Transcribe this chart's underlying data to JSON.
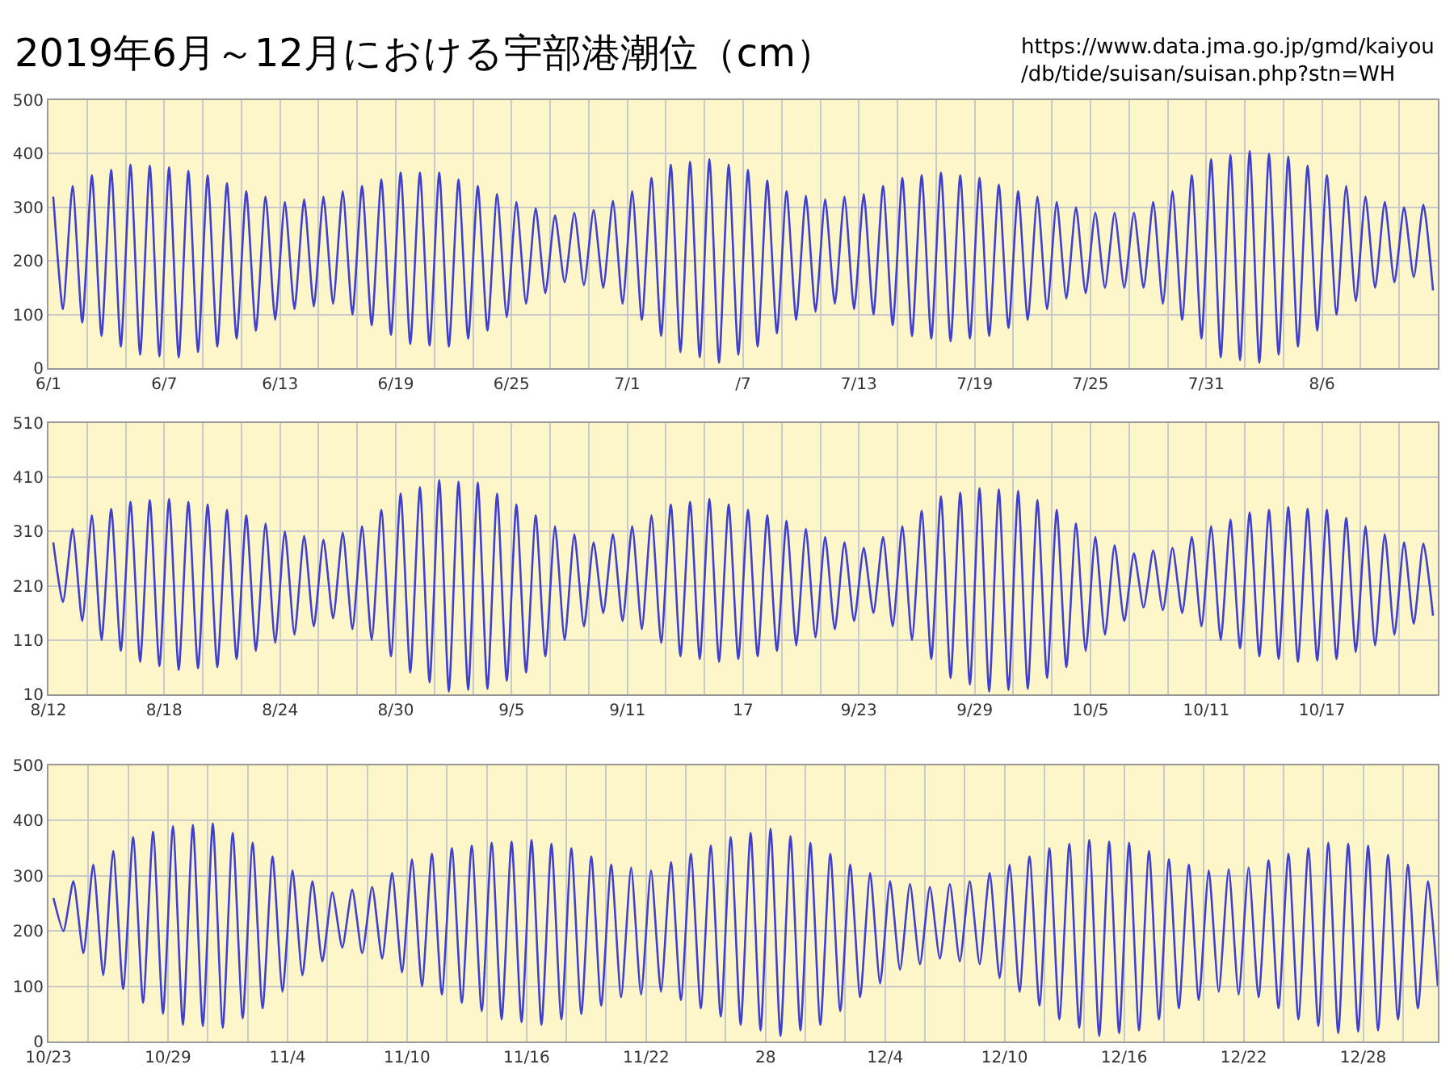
{
  "chart_data": [
    {
      "type": "line",
      "title": "2019年6月～12月における宇部港潮位（cm）",
      "annotations": [
        "https://www.data.jma.go.jp/gmd/kaiyou\n/db/tide/suisan/suisan.php?stn=WH"
      ],
      "grid": true,
      "xlim": [
        "2019-06-01",
        "2019-08-12"
      ],
      "ylim": [
        0,
        500
      ],
      "yticks": [
        0,
        100,
        200,
        300,
        400,
        500
      ],
      "xticks": [
        {
          "value": "2019-06-01",
          "label": "6/1"
        },
        {
          "value": "2019-06-03",
          "label": null
        },
        {
          "value": "2019-06-05",
          "label": null
        },
        {
          "value": "2019-06-07",
          "label": "6/7"
        },
        {
          "value": "2019-06-09",
          "label": null
        },
        {
          "value": "2019-06-11",
          "label": null
        },
        {
          "value": "2019-06-13",
          "label": "6/13"
        },
        {
          "value": "2019-06-15",
          "label": null
        },
        {
          "value": "2019-06-17",
          "label": null
        },
        {
          "value": "2019-06-19",
          "label": "6/19"
        },
        {
          "value": "2019-06-21",
          "label": null
        },
        {
          "value": "2019-06-23",
          "label": null
        },
        {
          "value": "2019-06-25",
          "label": "6/25"
        },
        {
          "value": "2019-06-27",
          "label": null
        },
        {
          "value": "2019-06-29",
          "label": null
        },
        {
          "value": "2019-07-01",
          "label": "7/1"
        },
        {
          "value": "2019-07-03",
          "label": null
        },
        {
          "value": "2019-07-05",
          "label": null
        },
        {
          "value": "2019-07-07",
          "label": "/7"
        },
        {
          "value": "2019-07-09",
          "label": null
        },
        {
          "value": "2019-07-11",
          "label": null
        },
        {
          "value": "2019-07-13",
          "label": "7/13"
        },
        {
          "value": "2019-07-15",
          "label": null
        },
        {
          "value": "2019-07-17",
          "label": null
        },
        {
          "value": "2019-07-19",
          "label": "7/19"
        },
        {
          "value": "2019-07-21",
          "label": null
        },
        {
          "value": "2019-07-23",
          "label": null
        },
        {
          "value": "2019-07-25",
          "label": "7/25"
        },
        {
          "value": "2019-07-27",
          "label": null
        },
        {
          "value": "2019-07-29",
          "label": null
        },
        {
          "value": "2019-07-31",
          "label": "7/31"
        },
        {
          "value": "2019-08-02",
          "label": null
        },
        {
          "value": "2019-08-04",
          "label": null
        },
        {
          "value": "2019-08-06",
          "label": "8/6"
        },
        {
          "value": "2019-08-08",
          "label": null
        },
        {
          "value": "2019-08-10",
          "label": null
        }
      ],
      "x": [
        "2019-06-01T06:00",
        "2019-06-01T18:00",
        "2019-06-02T06:00",
        "2019-06-02T18:00",
        "2019-06-03T06:00",
        "2019-06-03T18:00",
        "2019-06-04T06:00",
        "2019-06-04T18:00",
        "2019-06-05T06:00",
        "2019-06-05T18:00",
        "2019-06-06T06:00",
        "2019-06-06T18:00",
        "2019-06-07T06:00",
        "2019-06-07T18:00",
        "2019-06-08T06:00",
        "2019-06-08T18:00",
        "2019-06-09T06:00",
        "2019-06-09T18:00",
        "2019-06-10T06:00",
        "2019-06-10T18:00",
        "2019-06-11T06:00",
        "2019-06-11T18:00",
        "2019-06-12T06:00",
        "2019-06-12T18:00",
        "2019-06-13T06:00",
        "2019-06-13T18:00",
        "2019-06-14T06:00",
        "2019-06-14T18:00",
        "2019-06-15T06:00",
        "2019-06-15T18:00",
        "2019-06-16T06:00",
        "2019-06-16T18:00",
        "2019-06-17T06:00",
        "2019-06-17T18:00",
        "2019-06-18T06:00",
        "2019-06-18T18:00",
        "2019-06-19T06:00",
        "2019-06-19T18:00",
        "2019-06-20T06:00",
        "2019-06-20T18:00",
        "2019-06-21T06:00",
        "2019-06-21T18:00",
        "2019-06-22T06:00",
        "2019-06-22T18:00",
        "2019-06-23T06:00",
        "2019-06-23T18:00",
        "2019-06-24T06:00",
        "2019-06-24T18:00",
        "2019-06-25T06:00",
        "2019-06-25T18:00",
        "2019-06-26T06:00",
        "2019-06-26T18:00",
        "2019-06-27T06:00",
        "2019-06-27T18:00",
        "2019-06-28T06:00",
        "2019-06-28T18:00",
        "2019-06-29T06:00",
        "2019-06-29T18:00",
        "2019-06-30T06:00",
        "2019-06-30T18:00",
        "2019-07-01T06:00",
        "2019-07-01T18:00",
        "2019-07-02T06:00",
        "2019-07-02T18:00",
        "2019-07-03T06:00",
        "2019-07-03T18:00",
        "2019-07-04T06:00",
        "2019-07-04T18:00",
        "2019-07-05T06:00",
        "2019-07-05T18:00",
        "2019-07-06T06:00",
        "2019-07-06T18:00",
        "2019-07-07T06:00",
        "2019-07-07T18:00",
        "2019-07-08T06:00",
        "2019-07-08T18:00",
        "2019-07-09T06:00",
        "2019-07-09T18:00",
        "2019-07-10T06:00",
        "2019-07-10T18:00",
        "2019-07-11T06:00",
        "2019-07-11T18:00",
        "2019-07-12T06:00",
        "2019-07-12T18:00",
        "2019-07-13T06:00",
        "2019-07-13T18:00",
        "2019-07-14T06:00",
        "2019-07-14T18:00",
        "2019-07-15T06:00",
        "2019-07-15T18:00",
        "2019-07-16T06:00",
        "2019-07-16T18:00",
        "2019-07-17T06:00",
        "2019-07-17T18:00",
        "2019-07-18T06:00",
        "2019-07-18T18:00",
        "2019-07-19T06:00",
        "2019-07-19T18:00",
        "2019-07-20T06:00",
        "2019-07-20T18:00",
        "2019-07-21T06:00",
        "2019-07-21T18:00",
        "2019-07-22T06:00",
        "2019-07-22T18:00",
        "2019-07-23T06:00",
        "2019-07-23T18:00",
        "2019-07-24T06:00",
        "2019-07-24T18:00",
        "2019-07-25T06:00",
        "2019-07-25T18:00",
        "2019-07-26T06:00",
        "2019-07-26T18:00",
        "2019-07-27T06:00",
        "2019-07-27T18:00",
        "2019-07-28T06:00",
        "2019-07-28T18:00",
        "2019-07-29T06:00",
        "2019-07-29T18:00",
        "2019-07-30T06:00",
        "2019-07-30T18:00",
        "2019-07-31T06:00",
        "2019-07-31T18:00",
        "2019-08-01T06:00",
        "2019-08-01T18:00",
        "2019-08-02T06:00",
        "2019-08-02T18:00",
        "2019-08-03T06:00",
        "2019-08-03T18:00",
        "2019-08-04T06:00",
        "2019-08-04T18:00",
        "2019-08-05T06:00",
        "2019-08-05T18:00",
        "2019-08-06T06:00",
        "2019-08-06T18:00",
        "2019-08-07T06:00",
        "2019-08-07T18:00",
        "2019-08-08T06:00",
        "2019-08-08T18:00",
        "2019-08-09T06:00",
        "2019-08-09T18:00",
        "2019-08-10T06:00",
        "2019-08-10T18:00",
        "2019-08-11T06:00",
        "2019-08-11T18:00"
      ],
      "series": [
        {
          "color": "#4040d0",
          "values": [
            320,
            110,
            340,
            85,
            360,
            60,
            370,
            40,
            380,
            25,
            378,
            22,
            375,
            20,
            368,
            30,
            360,
            40,
            345,
            55,
            330,
            70,
            320,
            90,
            310,
            110,
            315,
            115,
            320,
            120,
            330,
            100,
            340,
            80,
            352,
            62,
            365,
            45,
            365,
            42,
            365,
            40,
            352,
            55,
            340,
            70,
            325,
            95,
            310,
            120,
            298,
            140,
            285,
            160,
            290,
            155,
            295,
            150,
            312,
            120,
            330,
            90,
            355,
            60,
            380,
            30,
            385,
            20,
            390,
            10,
            380,
            25,
            370,
            40,
            350,
            65,
            330,
            90,
            322,
            105,
            315,
            120,
            320,
            110,
            325,
            100,
            340,
            80,
            355,
            60,
            360,
            55,
            365,
            50,
            360,
            55,
            355,
            60,
            342,
            75,
            330,
            90,
            320,
            110,
            310,
            130,
            300,
            140,
            290,
            150,
            290,
            150,
            290,
            150,
            310,
            120,
            330,
            90,
            360,
            55,
            390,
            20,
            398,
            15,
            405,
            10,
            400,
            25,
            395,
            40,
            378,
            70,
            360,
            100,
            340,
            125,
            320,
            150,
            310,
            160,
            300,
            170,
            305,
            145
          ]
        }
      ]
    },
    {
      "type": "line",
      "grid": true,
      "xlim": [
        "2019-08-12",
        "2019-10-23"
      ],
      "ylim": [
        10,
        510
      ],
      "yticks": [
        10,
        110,
        210,
        310,
        410,
        510
      ],
      "xticks": [
        {
          "value": "2019-08-12",
          "label": "8/12"
        },
        {
          "value": "2019-08-14",
          "label": null
        },
        {
          "value": "2019-08-16",
          "label": null
        },
        {
          "value": "2019-08-18",
          "label": "8/18"
        },
        {
          "value": "2019-08-20",
          "label": null
        },
        {
          "value": "2019-08-22",
          "label": null
        },
        {
          "value": "2019-08-24",
          "label": "8/24"
        },
        {
          "value": "2019-08-26",
          "label": null
        },
        {
          "value": "2019-08-28",
          "label": null
        },
        {
          "value": "2019-08-30",
          "label": "8/30"
        },
        {
          "value": "2019-09-01",
          "label": null
        },
        {
          "value": "2019-09-03",
          "label": null
        },
        {
          "value": "2019-09-05",
          "label": "9/5"
        },
        {
          "value": "2019-09-07",
          "label": null
        },
        {
          "value": "2019-09-09",
          "label": null
        },
        {
          "value": "2019-09-11",
          "label": "9/11"
        },
        {
          "value": "2019-09-13",
          "label": null
        },
        {
          "value": "2019-09-15",
          "label": null
        },
        {
          "value": "2019-09-17",
          "label": "17"
        },
        {
          "value": "2019-09-19",
          "label": null
        },
        {
          "value": "2019-09-21",
          "label": null
        },
        {
          "value": "2019-09-23",
          "label": "9/23"
        },
        {
          "value": "2019-09-25",
          "label": null
        },
        {
          "value": "2019-09-27",
          "label": null
        },
        {
          "value": "2019-09-29",
          "label": "9/29"
        },
        {
          "value": "2019-10-01",
          "label": null
        },
        {
          "value": "2019-10-03",
          "label": null
        },
        {
          "value": "2019-10-05",
          "label": "10/5"
        },
        {
          "value": "2019-10-07",
          "label": null
        },
        {
          "value": "2019-10-09",
          "label": null
        },
        {
          "value": "2019-10-11",
          "label": "10/11"
        },
        {
          "value": "2019-10-13",
          "label": null
        },
        {
          "value": "2019-10-15",
          "label": null
        },
        {
          "value": "2019-10-17",
          "label": "10/17"
        },
        {
          "value": "2019-10-19",
          "label": null
        },
        {
          "value": "2019-10-21",
          "label": null
        }
      ],
      "x": [
        "2019-08-12T06:00",
        "2019-08-12T18:00",
        "2019-08-13T06:00",
        "2019-08-13T18:00",
        "2019-08-14T06:00",
        "2019-08-14T18:00",
        "2019-08-15T06:00",
        "2019-08-15T18:00",
        "2019-08-16T06:00",
        "2019-08-16T18:00",
        "2019-08-17T06:00",
        "2019-08-17T18:00",
        "2019-08-18T06:00",
        "2019-08-18T18:00",
        "2019-08-19T06:00",
        "2019-08-19T18:00",
        "2019-08-20T06:00",
        "2019-08-20T18:00",
        "2019-08-21T06:00",
        "2019-08-21T18:00",
        "2019-08-22T06:00",
        "2019-08-22T18:00",
        "2019-08-23T06:00",
        "2019-08-23T18:00",
        "2019-08-24T06:00",
        "2019-08-24T18:00",
        "2019-08-25T06:00",
        "2019-08-25T18:00",
        "2019-08-26T06:00",
        "2019-08-26T18:00",
        "2019-08-27T06:00",
        "2019-08-27T18:00",
        "2019-08-28T06:00",
        "2019-08-28T18:00",
        "2019-08-29T06:00",
        "2019-08-29T18:00",
        "2019-08-30T06:00",
        "2019-08-30T18:00",
        "2019-08-31T06:00",
        "2019-08-31T18:00",
        "2019-09-01T06:00",
        "2019-09-01T18:00",
        "2019-09-02T06:00",
        "2019-09-02T18:00",
        "2019-09-03T06:00",
        "2019-09-03T18:00",
        "2019-09-04T06:00",
        "2019-09-04T18:00",
        "2019-09-05T06:00",
        "2019-09-05T18:00",
        "2019-09-06T06:00",
        "2019-09-06T18:00",
        "2019-09-07T06:00",
        "2019-09-07T18:00",
        "2019-09-08T06:00",
        "2019-09-08T18:00",
        "2019-09-09T06:00",
        "2019-09-09T18:00",
        "2019-09-10T06:00",
        "2019-09-10T18:00",
        "2019-09-11T06:00",
        "2019-09-11T18:00",
        "2019-09-12T06:00",
        "2019-09-12T18:00",
        "2019-09-13T06:00",
        "2019-09-13T18:00",
        "2019-09-14T06:00",
        "2019-09-14T18:00",
        "2019-09-15T06:00",
        "2019-09-15T18:00",
        "2019-09-16T06:00",
        "2019-09-16T18:00",
        "2019-09-17T06:00",
        "2019-09-17T18:00",
        "2019-09-18T06:00",
        "2019-09-18T18:00",
        "2019-09-19T06:00",
        "2019-09-19T18:00",
        "2019-09-20T06:00",
        "2019-09-20T18:00",
        "2019-09-21T06:00",
        "2019-09-21T18:00",
        "2019-09-22T06:00",
        "2019-09-22T18:00",
        "2019-09-23T06:00",
        "2019-09-23T18:00",
        "2019-09-24T06:00",
        "2019-09-24T18:00",
        "2019-09-25T06:00",
        "2019-09-25T18:00",
        "2019-09-26T06:00",
        "2019-09-26T18:00",
        "2019-09-27T06:00",
        "2019-09-27T18:00",
        "2019-09-28T06:00",
        "2019-09-28T18:00",
        "2019-09-29T06:00",
        "2019-09-29T18:00",
        "2019-09-30T06:00",
        "2019-09-30T18:00",
        "2019-10-01T06:00",
        "2019-10-01T18:00",
        "2019-10-02T06:00",
        "2019-10-02T18:00",
        "2019-10-03T06:00",
        "2019-10-03T18:00",
        "2019-10-04T06:00",
        "2019-10-04T18:00",
        "2019-10-05T06:00",
        "2019-10-05T18:00",
        "2019-10-06T06:00",
        "2019-10-06T18:00",
        "2019-10-07T06:00",
        "2019-10-07T18:00",
        "2019-10-08T06:00",
        "2019-10-08T18:00",
        "2019-10-09T06:00",
        "2019-10-09T18:00",
        "2019-10-10T06:00",
        "2019-10-10T18:00",
        "2019-10-11T06:00",
        "2019-10-11T18:00",
        "2019-10-12T06:00",
        "2019-10-12T18:00",
        "2019-10-13T06:00",
        "2019-10-13T18:00",
        "2019-10-14T06:00",
        "2019-10-14T18:00",
        "2019-10-15T06:00",
        "2019-10-15T18:00",
        "2019-10-16T06:00",
        "2019-10-16T18:00",
        "2019-10-17T06:00",
        "2019-10-17T18:00",
        "2019-10-18T06:00",
        "2019-10-18T18:00",
        "2019-10-19T06:00",
        "2019-10-19T18:00",
        "2019-10-20T06:00",
        "2019-10-20T18:00",
        "2019-10-21T06:00",
        "2019-10-21T18:00",
        "2019-10-22T06:00",
        "2019-10-22T18:00"
      ],
      "series": [
        {
          "color": "#4040d0",
          "values": [
            290,
            180,
            315,
            145,
            340,
            110,
            352,
            90,
            365,
            70,
            368,
            62,
            370,
            55,
            365,
            58,
            360,
            60,
            350,
            75,
            340,
            90,
            325,
            105,
            310,
            120,
            302,
            135,
            295,
            150,
            308,
            130,
            320,
            110,
            350,
            80,
            380,
            50,
            392,
            32,
            405,
            15,
            402,
            18,
            400,
            20,
            380,
            35,
            360,
            50,
            340,
            80,
            320,
            110,
            305,
            135,
            290,
            160,
            305,
            145,
            320,
            130,
            340,
            105,
            360,
            80,
            365,
            75,
            370,
            70,
            360,
            75,
            350,
            80,
            340,
            90,
            330,
            100,
            315,
            115,
            300,
            130,
            290,
            145,
            280,
            160,
            300,
            135,
            320,
            110,
            348,
            75,
            375,
            40,
            382,
            28,
            390,
            15,
            388,
            18,
            385,
            20,
            368,
            40,
            350,
            60,
            325,
            90,
            300,
            120,
            285,
            145,
            270,
            170,
            275,
            165,
            280,
            160,
            300,
            135,
            320,
            110,
            332,
            95,
            345,
            80,
            350,
            75,
            355,
            70,
            352,
            72,
            350,
            75,
            335,
            88,
            320,
            100,
            305,
            120,
            290,
            140,
            288,
            155
          ]
        }
      ]
    },
    {
      "type": "line",
      "grid": true,
      "xlim": [
        "2019-10-23",
        "2019-12-31T18:00"
      ],
      "ylim": [
        0,
        500
      ],
      "yticks": [
        0,
        100,
        200,
        300,
        400,
        500
      ],
      "xticks": [
        {
          "value": "2019-10-23",
          "label": "10/23"
        },
        {
          "value": "2019-10-25",
          "label": null
        },
        {
          "value": "2019-10-27",
          "label": null
        },
        {
          "value": "2019-10-29",
          "label": "10/29"
        },
        {
          "value": "2019-10-31",
          "label": null
        },
        {
          "value": "2019-11-02",
          "label": null
        },
        {
          "value": "2019-11-04",
          "label": "11/4"
        },
        {
          "value": "2019-11-06",
          "label": null
        },
        {
          "value": "2019-11-08",
          "label": null
        },
        {
          "value": "2019-11-10",
          "label": "11/10"
        },
        {
          "value": "2019-11-12",
          "label": null
        },
        {
          "value": "2019-11-14",
          "label": null
        },
        {
          "value": "2019-11-16",
          "label": "11/16"
        },
        {
          "value": "2019-11-18",
          "label": null
        },
        {
          "value": "2019-11-20",
          "label": null
        },
        {
          "value": "2019-11-22",
          "label": "11/22"
        },
        {
          "value": "2019-11-24",
          "label": null
        },
        {
          "value": "2019-11-26",
          "label": null
        },
        {
          "value": "2019-11-28",
          "label": "28"
        },
        {
          "value": "2019-11-30",
          "label": null
        },
        {
          "value": "2019-12-02",
          "label": null
        },
        {
          "value": "2019-12-04",
          "label": "12/4"
        },
        {
          "value": "2019-12-06",
          "label": null
        },
        {
          "value": "2019-12-08",
          "label": null
        },
        {
          "value": "2019-12-10",
          "label": "12/10"
        },
        {
          "value": "2019-12-12",
          "label": null
        },
        {
          "value": "2019-12-14",
          "label": null
        },
        {
          "value": "2019-12-16",
          "label": "12/16"
        },
        {
          "value": "2019-12-18",
          "label": null
        },
        {
          "value": "2019-12-20",
          "label": null
        },
        {
          "value": "2019-12-22",
          "label": "12/22"
        },
        {
          "value": "2019-12-24",
          "label": null
        },
        {
          "value": "2019-12-26",
          "label": null
        },
        {
          "value": "2019-12-28",
          "label": "12/28"
        },
        {
          "value": "2019-12-30",
          "label": null
        }
      ],
      "x": [
        "2019-10-23T06:00",
        "2019-10-23T18:00",
        "2019-10-24T06:00",
        "2019-10-24T18:00",
        "2019-10-25T06:00",
        "2019-10-25T18:00",
        "2019-10-26T06:00",
        "2019-10-26T18:00",
        "2019-10-27T06:00",
        "2019-10-27T18:00",
        "2019-10-28T06:00",
        "2019-10-28T18:00",
        "2019-10-29T06:00",
        "2019-10-29T18:00",
        "2019-10-30T06:00",
        "2019-10-30T18:00",
        "2019-10-31T06:00",
        "2019-10-31T18:00",
        "2019-11-01T06:00",
        "2019-11-01T18:00",
        "2019-11-02T06:00",
        "2019-11-02T18:00",
        "2019-11-03T06:00",
        "2019-11-03T18:00",
        "2019-11-04T06:00",
        "2019-11-04T18:00",
        "2019-11-05T06:00",
        "2019-11-05T18:00",
        "2019-11-06T06:00",
        "2019-11-06T18:00",
        "2019-11-07T06:00",
        "2019-11-07T18:00",
        "2019-11-08T06:00",
        "2019-11-08T18:00",
        "2019-11-09T06:00",
        "2019-11-09T18:00",
        "2019-11-10T06:00",
        "2019-11-10T18:00",
        "2019-11-11T06:00",
        "2019-11-11T18:00",
        "2019-11-12T06:00",
        "2019-11-12T18:00",
        "2019-11-13T06:00",
        "2019-11-13T18:00",
        "2019-11-14T06:00",
        "2019-11-14T18:00",
        "2019-11-15T06:00",
        "2019-11-15T18:00",
        "2019-11-16T06:00",
        "2019-11-16T18:00",
        "2019-11-17T06:00",
        "2019-11-17T18:00",
        "2019-11-18T06:00",
        "2019-11-18T18:00",
        "2019-11-19T06:00",
        "2019-11-19T18:00",
        "2019-11-20T06:00",
        "2019-11-20T18:00",
        "2019-11-21T06:00",
        "2019-11-21T18:00",
        "2019-11-22T06:00",
        "2019-11-22T18:00",
        "2019-11-23T06:00",
        "2019-11-23T18:00",
        "2019-11-24T06:00",
        "2019-11-24T18:00",
        "2019-11-25T06:00",
        "2019-11-25T18:00",
        "2019-11-26T06:00",
        "2019-11-26T18:00",
        "2019-11-27T06:00",
        "2019-11-27T18:00",
        "2019-11-28T06:00",
        "2019-11-28T18:00",
        "2019-11-29T06:00",
        "2019-11-29T18:00",
        "2019-11-30T06:00",
        "2019-11-30T18:00",
        "2019-12-01T06:00",
        "2019-12-01T18:00",
        "2019-12-02T06:00",
        "2019-12-02T18:00",
        "2019-12-03T06:00",
        "2019-12-03T18:00",
        "2019-12-04T06:00",
        "2019-12-04T18:00",
        "2019-12-05T06:00",
        "2019-12-05T18:00",
        "2019-12-06T06:00",
        "2019-12-06T18:00",
        "2019-12-07T06:00",
        "2019-12-07T18:00",
        "2019-12-08T06:00",
        "2019-12-08T18:00",
        "2019-12-09T06:00",
        "2019-12-09T18:00",
        "2019-12-10T06:00",
        "2019-12-10T18:00",
        "2019-12-11T06:00",
        "2019-12-11T18:00",
        "2019-12-12T06:00",
        "2019-12-12T18:00",
        "2019-12-13T06:00",
        "2019-12-13T18:00",
        "2019-12-14T06:00",
        "2019-12-14T18:00",
        "2019-12-15T06:00",
        "2019-12-15T18:00",
        "2019-12-16T06:00",
        "2019-12-16T18:00",
        "2019-12-17T06:00",
        "2019-12-17T18:00",
        "2019-12-18T06:00",
        "2019-12-18T18:00",
        "2019-12-19T06:00",
        "2019-12-19T18:00",
        "2019-12-20T06:00",
        "2019-12-20T18:00",
        "2019-12-21T06:00",
        "2019-12-21T18:00",
        "2019-12-22T06:00",
        "2019-12-22T18:00",
        "2019-12-23T06:00",
        "2019-12-23T18:00",
        "2019-12-24T06:00",
        "2019-12-24T18:00",
        "2019-12-25T06:00",
        "2019-12-25T18:00",
        "2019-12-26T06:00",
        "2019-12-26T18:00",
        "2019-12-27T06:00",
        "2019-12-27T18:00",
        "2019-12-28T06:00",
        "2019-12-28T18:00",
        "2019-12-29T06:00",
        "2019-12-29T18:00",
        "2019-12-30T06:00",
        "2019-12-30T18:00",
        "2019-12-31T06:00",
        "2019-12-31T18:00"
      ],
      "series": [
        {
          "color": "#4040d0",
          "values": [
            260,
            200,
            290,
            160,
            320,
            120,
            345,
            95,
            370,
            70,
            380,
            50,
            390,
            30,
            392,
            28,
            395,
            25,
            378,
            42,
            360,
            60,
            335,
            90,
            310,
            120,
            290,
            145,
            270,
            170,
            275,
            160,
            280,
            150,
            305,
            125,
            330,
            100,
            340,
            85,
            350,
            70,
            355,
            55,
            360,
            40,
            362,
            35,
            365,
            30,
            358,
            40,
            350,
            50,
            335,
            65,
            320,
            80,
            315,
            85,
            310,
            90,
            325,
            75,
            340,
            60,
            355,
            45,
            370,
            30,
            378,
            20,
            385,
            10,
            372,
            20,
            360,
            30,
            340,
            55,
            320,
            80,
            305,
            105,
            290,
            130,
            285,
            140,
            280,
            150,
            285,
            145,
            290,
            140,
            305,
            115,
            320,
            90,
            335,
            65,
            350,
            40,
            358,
            25,
            365,
            10,
            362,
            15,
            360,
            20,
            345,
            40,
            330,
            60,
            320,
            75,
            310,
            90,
            312,
            85,
            315,
            80,
            328,
            60,
            340,
            40,
            350,
            28,
            360,
            15,
            358,
            18,
            355,
            20,
            338,
            40,
            320,
            60,
            290,
            100
          ]
        }
      ]
    }
  ]
}
